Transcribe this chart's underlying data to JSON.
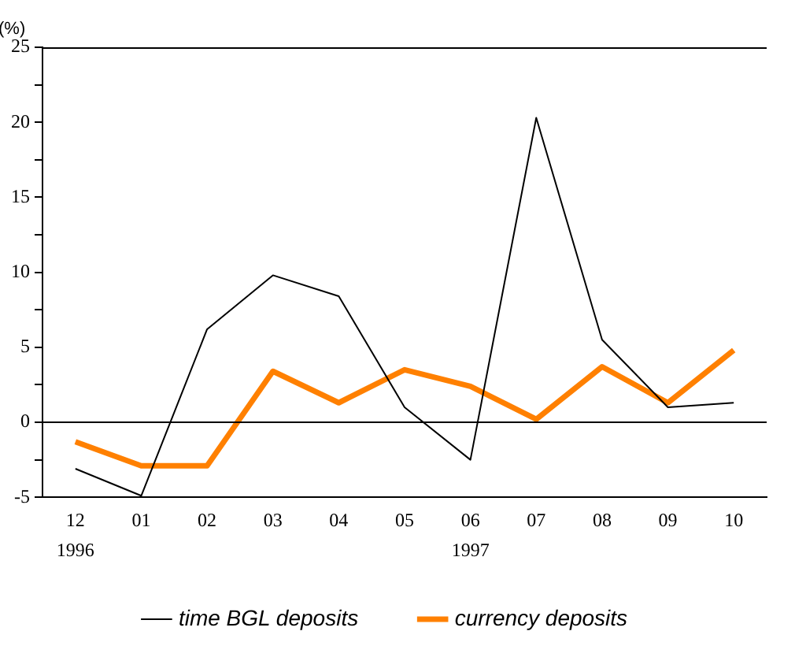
{
  "chart_data": {
    "type": "line",
    "ylabel": "(%)",
    "categories": [
      "12",
      "01",
      "02",
      "03",
      "04",
      "05",
      "06",
      "07",
      "08",
      "09",
      "10"
    ],
    "series": [
      {
        "name": "time BGL deposits",
        "color": "#000000",
        "values": [
          -3.1,
          -4.9,
          6.2,
          9.8,
          8.4,
          1.0,
          -2.5,
          20.3,
          5.5,
          1.0,
          1.3
        ]
      },
      {
        "name": "currency deposits",
        "color": "#ff8000",
        "values": [
          -1.3,
          -2.9,
          -2.9,
          3.4,
          1.3,
          3.5,
          2.4,
          0.2,
          3.7,
          1.3,
          4.8
        ]
      }
    ],
    "ylim": [
      -5,
      25
    ],
    "yticks": [
      -5,
      {
        "value": -2.5,
        "label": null
      },
      0,
      {
        "value": 2.5,
        "label": null
      },
      5,
      {
        "value": 7.5,
        "label": null
      },
      10,
      {
        "value": 12.5,
        "label": null
      },
      15,
      {
        "value": 17.5,
        "label": null
      },
      20,
      {
        "value": 22.5,
        "label": null
      },
      25
    ],
    "ref_lines": [
      {
        "axis": "y",
        "value": 0,
        "color": "#000000"
      }
    ],
    "annotations": [
      "1996",
      "1997"
    ],
    "grid": false,
    "legend": "bottom",
    "marker": "none",
    "line_style": "solid"
  }
}
